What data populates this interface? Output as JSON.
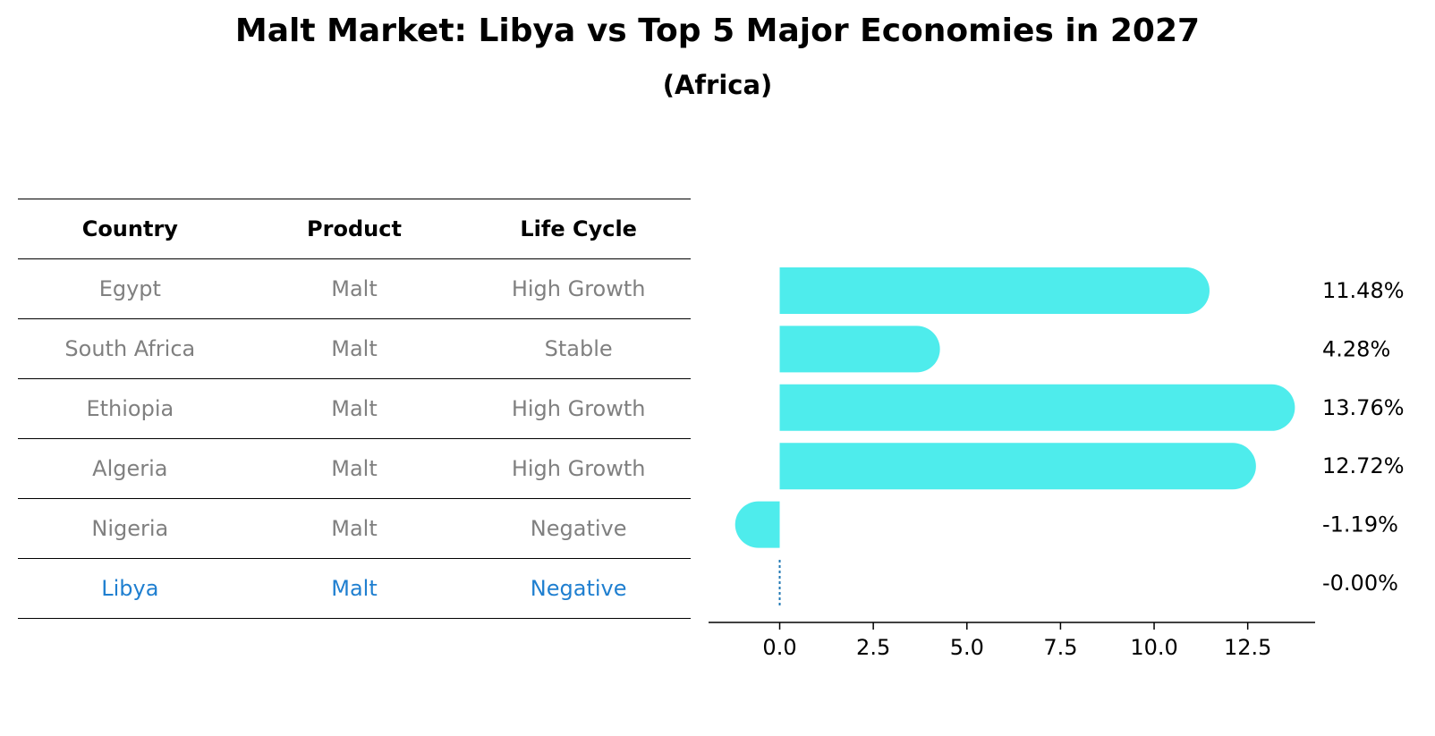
{
  "title": "Malt Market: Libya vs Top 5 Major Economies in 2027",
  "subtitle": "(Africa)",
  "table": {
    "headers": [
      "Country",
      "Product",
      "Life Cycle"
    ],
    "rows": [
      {
        "country": "Egypt",
        "product": "Malt",
        "life_cycle": "High Growth"
      },
      {
        "country": "South Africa",
        "product": "Malt",
        "life_cycle": "Stable"
      },
      {
        "country": "Ethiopia",
        "product": "Malt",
        "life_cycle": "High Growth"
      },
      {
        "country": "Algeria",
        "product": "Malt",
        "life_cycle": "High Growth"
      },
      {
        "country": "Nigeria",
        "product": "Malt",
        "life_cycle": "Negative"
      },
      {
        "country": "Libya",
        "product": "Malt",
        "life_cycle": "Negative"
      }
    ],
    "highlight_color": "#1f7fd0",
    "text_color": "#808080"
  },
  "chart_data": {
    "type": "bar",
    "orientation": "horizontal",
    "categories": [
      "Egypt",
      "South Africa",
      "Ethiopia",
      "Algeria",
      "Nigeria",
      "Libya"
    ],
    "values": [
      11.48,
      4.28,
      13.76,
      12.72,
      -1.19,
      -0.0
    ],
    "value_labels": [
      "11.48%",
      "4.28%",
      "13.76%",
      "12.72%",
      "-1.19%",
      "-0.00%"
    ],
    "xlim": [
      -1.9,
      14.3
    ],
    "xticks": [
      0.0,
      2.5,
      5.0,
      7.5,
      10.0,
      12.5
    ],
    "xtick_labels": [
      "0.0",
      "2.5",
      "5.0",
      "7.5",
      "10.0",
      "12.5"
    ],
    "bar_color": "#4eecec",
    "zero_line_color": "#1f77b4",
    "grid": false
  }
}
